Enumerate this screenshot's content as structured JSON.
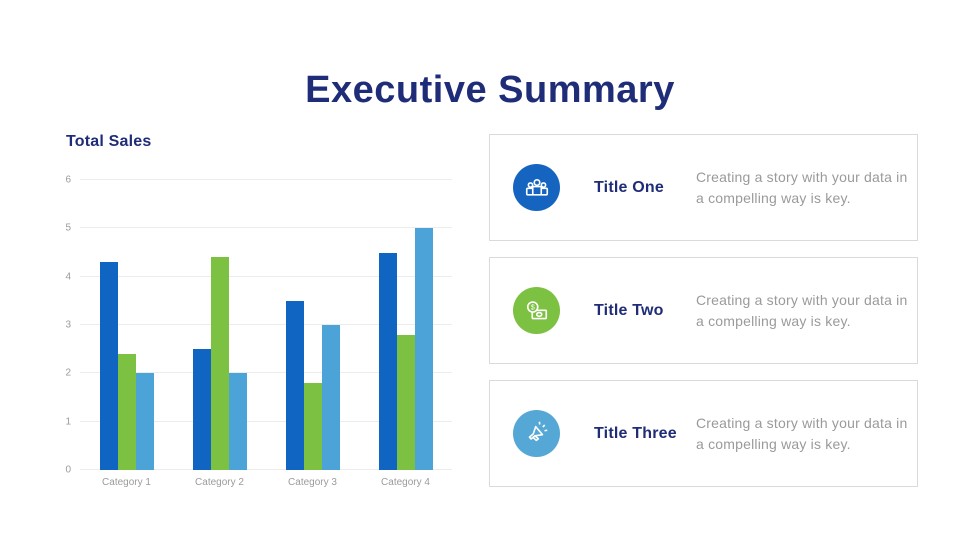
{
  "slide_title": "Executive Summary",
  "chart_data": {
    "type": "bar",
    "title": "Total Sales",
    "categories": [
      "Category 1",
      "Category 2",
      "Category 3",
      "Category 4"
    ],
    "series": [
      {
        "name": "blue",
        "color": "#1064C2",
        "values": [
          4.3,
          2.5,
          3.5,
          4.5
        ]
      },
      {
        "name": "green",
        "color": "#7DC142",
        "values": [
          2.4,
          4.4,
          1.8,
          2.8
        ]
      },
      {
        "name": "light-blue",
        "color": "#4BA3D8",
        "values": [
          2.0,
          2.0,
          3.0,
          5.0
        ]
      }
    ],
    "xlabel": "",
    "ylabel": "",
    "ylim": [
      0,
      6
    ],
    "yticks": [
      0,
      1,
      2,
      3,
      4,
      5,
      6
    ],
    "grid": true,
    "legend": "none"
  },
  "cards": [
    {
      "title": "Title One",
      "description": "Creating a story with your data in a compelling way is key.",
      "icon": "people-group-icon",
      "color": "#1565C0"
    },
    {
      "title": "Title Two",
      "description": "Creating a story with your data in a compelling way is key.",
      "icon": "money-icon",
      "color": "#7DC142"
    },
    {
      "title": "Title Three",
      "description": "Creating a story with your data in a compelling way is key.",
      "icon": "megaphone-icon",
      "color": "#55A7D5"
    }
  ],
  "colors": {
    "heading_navy": "#1F2C77",
    "body_gray": "#9A9A9A",
    "gridline": "#ECECEC",
    "card_border": "#DADADA"
  }
}
